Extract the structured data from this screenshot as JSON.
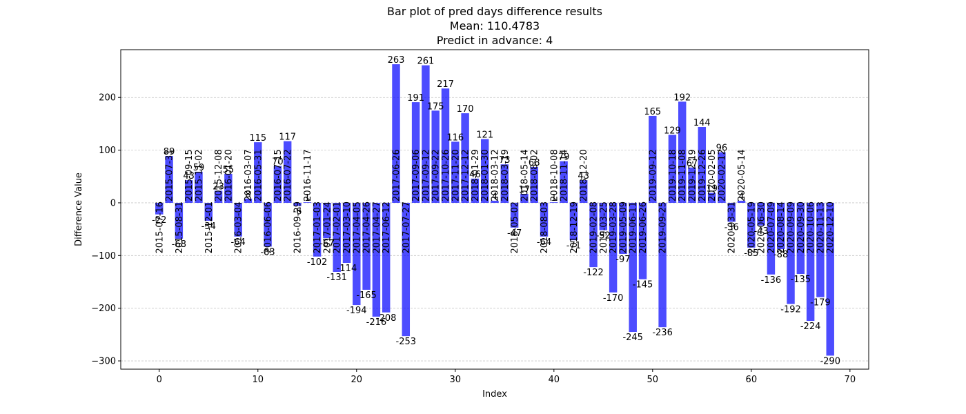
{
  "chart_data": {
    "type": "bar",
    "title_lines": [
      "Bar plot of pred days difference results",
      "Mean: 110.4783",
      "Predict in advance: 4"
    ],
    "xlabel": "Index",
    "ylabel": "Difference Value",
    "xlim": [
      -3.9,
      71.9
    ],
    "ylim": [
      -315.65,
      290.65
    ],
    "xticks": [
      0,
      10,
      20,
      30,
      40,
      50,
      60,
      70
    ],
    "yticks": [
      -300,
      -200,
      -100,
      0,
      100,
      200
    ],
    "grid": "y-dashed",
    "bar_color": "#0000ff",
    "x": [
      0,
      1,
      2,
      3,
      4,
      5,
      6,
      7,
      8,
      9,
      10,
      11,
      12,
      13,
      14,
      15,
      16,
      17,
      18,
      19,
      20,
      21,
      22,
      23,
      24,
      25,
      26,
      27,
      28,
      29,
      30,
      31,
      32,
      33,
      34,
      35,
      36,
      37,
      38,
      39,
      40,
      41,
      42,
      43,
      44,
      45,
      46,
      47,
      48,
      49,
      50,
      51,
      52,
      53,
      54,
      55,
      56,
      57,
      58,
      59,
      60,
      61,
      62,
      63,
      64,
      65,
      66,
      67,
      68
    ],
    "values": [
      -22,
      89,
      -68,
      43,
      59,
      -34,
      23,
      55,
      -64,
      8,
      115,
      -83,
      70,
      117,
      -6,
      1,
      -102,
      -67,
      -131,
      -114,
      -194,
      -165,
      -216,
      -208,
      263,
      -253,
      191,
      261,
      175,
      217,
      116,
      170,
      46,
      121,
      4,
      73,
      -47,
      17,
      68,
      -64,
      1,
      79,
      -71,
      43,
      -122,
      -52,
      -170,
      -97,
      -245,
      -145,
      165,
      -236,
      129,
      192,
      67,
      144,
      19,
      96,
      -36,
      4,
      -85,
      -43,
      -136,
      -88,
      -192,
      -135,
      -224,
      -179,
      -290
    ],
    "dates": [
      "2015-07-16",
      "2015-07-31",
      "2015-08-31",
      "2015-09-15",
      "2015-11-02",
      "2015-12-01",
      "2015-12-08",
      "2016-01-20",
      "2016-03-04",
      "2016-03-07",
      "2016-05-31",
      "2016-06-06",
      "2016-07-15",
      "2016-07-22",
      "2016-09-29",
      "2016-11-17",
      "2017-01-03",
      "2017-01-24",
      "2017-02-01",
      "2017-03-10",
      "2017-04-05",
      "2017-04-26",
      "2017-04-27",
      "2017-06-12",
      "2017-06-26",
      "2017-07-27",
      "2017-09-06",
      "2017-09-12",
      "2017-09-22",
      "2017-10-26",
      "2017-11-20",
      "2017-12-12",
      "2018-01-29",
      "2018-01-30",
      "2018-03-12",
      "2018-03-19",
      "2018-05-02",
      "2018-05-14",
      "2018-08-02",
      "2018-08-03",
      "2018-10-08",
      "2018-11-14",
      "2018-12-19",
      "2018-12-20",
      "2019-02-08",
      "2019-03-25",
      "2019-03-28",
      "2019-05-09",
      "2019-06-11",
      "2019-06-26",
      "2019-09-12",
      "2019-09-25",
      "2019-10-18",
      "2019-11-08",
      "2019-12-19",
      "2019-12-26",
      "2020-02-05",
      "2020-02-12",
      "2020-03-31",
      "2020-05-14",
      "2020-05-19",
      "2020-06-30",
      "2020-07-09",
      "2020-08-14",
      "2020-09-09",
      "2020-09-30",
      "2020-10-06",
      "2020-11-13",
      "2020-12-10"
    ]
  }
}
